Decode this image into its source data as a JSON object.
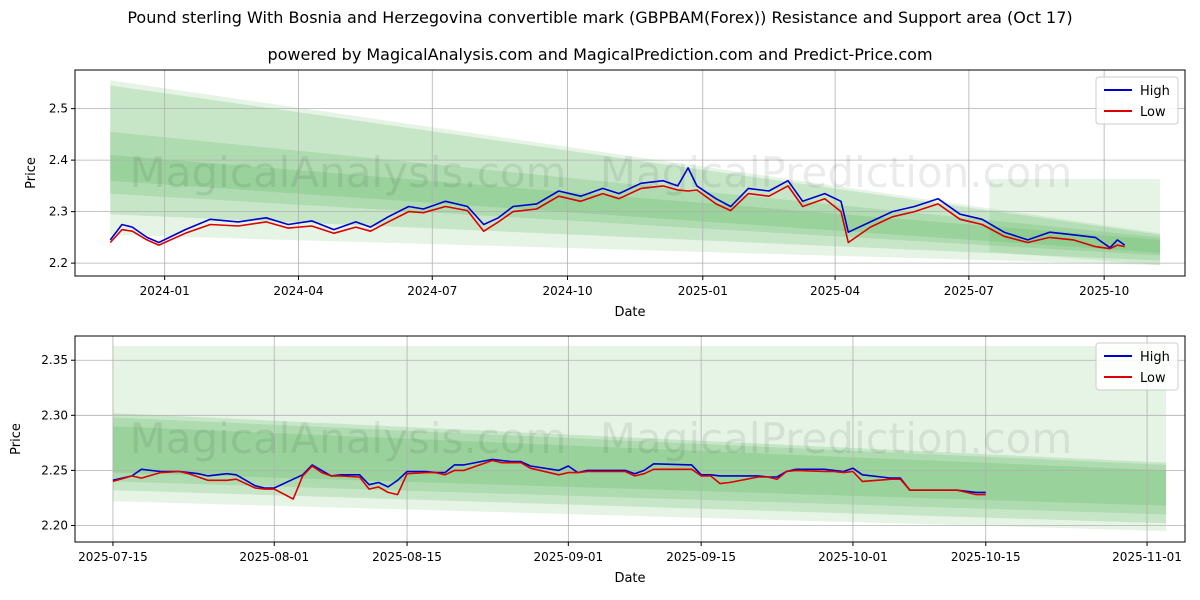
{
  "title": "Pound sterling With Bosnia and Herzegovina convertible mark (GBPBAM(Forex)) Resistance and Support area (Oct 17)",
  "subtitle": "powered by MagicalAnalysis.com and MagicalPrediction.com and Predict-Price.com",
  "watermarks": [
    "MagicalAnalysis.com",
    "MagicalPrediction.com"
  ],
  "colors": {
    "high": "#0000cc",
    "low": "#dd0000",
    "band": "#4caf50",
    "grid": "#b0b0b0"
  },
  "chart_data": [
    {
      "type": "line",
      "xlabel": "Date",
      "ylabel": "Price",
      "grid": true,
      "legend": "top-right",
      "xlim": [
        "2023-11-01",
        "2025-11-25"
      ],
      "ylim": [
        2.175,
        2.575
      ],
      "xticks": [
        {
          "date": "2024-01-01",
          "label": "2024-01"
        },
        {
          "date": "2024-04-01",
          "label": "2024-04"
        },
        {
          "date": "2024-07-01",
          "label": "2024-07"
        },
        {
          "date": "2024-10-01",
          "label": "2024-10"
        },
        {
          "date": "2025-01-01",
          "label": "2025-01"
        },
        {
          "date": "2025-04-01",
          "label": "2025-04"
        },
        {
          "date": "2025-07-01",
          "label": "2025-07"
        },
        {
          "date": "2025-10-01",
          "label": "2025-10"
        }
      ],
      "yticks": [
        {
          "v": 2.2,
          "label": "2.2"
        },
        {
          "v": 2.3,
          "label": "2.3"
        },
        {
          "v": 2.4,
          "label": "2.4"
        },
        {
          "v": 2.5,
          "label": "2.5"
        }
      ],
      "bands": [
        {
          "x": [
            "2023-11-25",
            "2025-11-08"
          ],
          "upper": [
            2.555,
            2.258
          ],
          "lower": [
            2.255,
            2.196
          ],
          "opacity": 0.14
        },
        {
          "x": [
            "2023-11-25",
            "2025-11-08"
          ],
          "upper": [
            2.545,
            2.255
          ],
          "lower": [
            2.295,
            2.205
          ],
          "opacity": 0.2
        },
        {
          "x": [
            "2023-11-25",
            "2025-11-08"
          ],
          "upper": [
            2.455,
            2.25
          ],
          "lower": [
            2.335,
            2.215
          ],
          "opacity": 0.2
        },
        {
          "x": [
            "2023-11-25",
            "2025-11-08"
          ],
          "upper": [
            2.41,
            2.245
          ],
          "lower": [
            2.36,
            2.22
          ],
          "opacity": 0.2
        },
        {
          "x": [
            "2025-07-15",
            "2025-11-08"
          ],
          "upper": [
            2.363,
            2.363
          ],
          "lower": [
            2.222,
            2.196
          ],
          "opacity": 0.14
        }
      ],
      "series": [
        {
          "name": "High",
          "x": [
            "2023-11-25",
            "2023-12-03",
            "2023-12-10",
            "2023-12-20",
            "2023-12-28",
            "2024-01-15",
            "2024-02-01",
            "2024-02-20",
            "2024-03-10",
            "2024-03-25",
            "2024-04-10",
            "2024-04-25",
            "2024-05-10",
            "2024-05-20",
            "2024-06-01",
            "2024-06-15",
            "2024-06-25",
            "2024-07-10",
            "2024-07-25",
            "2024-08-05",
            "2024-08-15",
            "2024-08-25",
            "2024-09-10",
            "2024-09-25",
            "2024-10-10",
            "2024-10-25",
            "2024-11-05",
            "2024-11-20",
            "2024-12-05",
            "2024-12-15",
            "2024-12-22",
            "2024-12-28",
            "2025-01-10",
            "2025-01-20",
            "2025-02-01",
            "2025-02-15",
            "2025-02-28",
            "2025-03-10",
            "2025-03-25",
            "2025-04-05",
            "2025-04-10",
            "2025-04-25",
            "2025-05-10",
            "2025-05-25",
            "2025-06-10",
            "2025-06-25",
            "2025-07-10",
            "2025-07-25",
            "2025-08-10",
            "2025-08-25",
            "2025-09-10",
            "2025-09-25",
            "2025-10-05",
            "2025-10-10",
            "2025-10-15"
          ],
          "y": [
            2.245,
            2.275,
            2.27,
            2.25,
            2.24,
            2.265,
            2.285,
            2.28,
            2.288,
            2.275,
            2.282,
            2.265,
            2.28,
            2.27,
            2.29,
            2.31,
            2.305,
            2.32,
            2.31,
            2.275,
            2.288,
            2.31,
            2.315,
            2.34,
            2.33,
            2.345,
            2.335,
            2.355,
            2.36,
            2.35,
            2.385,
            2.35,
            2.325,
            2.31,
            2.345,
            2.34,
            2.36,
            2.32,
            2.335,
            2.32,
            2.26,
            2.28,
            2.3,
            2.31,
            2.325,
            2.295,
            2.285,
            2.26,
            2.245,
            2.26,
            2.255,
            2.25,
            2.23,
            2.245,
            2.235
          ]
        },
        {
          "name": "Low",
          "x": [
            "2023-11-25",
            "2023-12-03",
            "2023-12-10",
            "2023-12-20",
            "2023-12-28",
            "2024-01-15",
            "2024-02-01",
            "2024-02-20",
            "2024-03-10",
            "2024-03-25",
            "2024-04-10",
            "2024-04-25",
            "2024-05-10",
            "2024-05-20",
            "2024-06-01",
            "2024-06-15",
            "2024-06-25",
            "2024-07-10",
            "2024-07-25",
            "2024-08-05",
            "2024-08-15",
            "2024-08-25",
            "2024-09-10",
            "2024-09-25",
            "2024-10-10",
            "2024-10-25",
            "2024-11-05",
            "2024-11-20",
            "2024-12-05",
            "2024-12-15",
            "2024-12-22",
            "2024-12-28",
            "2025-01-10",
            "2025-01-20",
            "2025-02-01",
            "2025-02-15",
            "2025-02-28",
            "2025-03-10",
            "2025-03-25",
            "2025-04-05",
            "2025-04-10",
            "2025-04-25",
            "2025-05-10",
            "2025-05-25",
            "2025-06-10",
            "2025-06-25",
            "2025-07-10",
            "2025-07-25",
            "2025-08-10",
            "2025-08-25",
            "2025-09-10",
            "2025-09-25",
            "2025-10-05",
            "2025-10-10",
            "2025-10-15"
          ],
          "y": [
            2.24,
            2.265,
            2.262,
            2.245,
            2.235,
            2.258,
            2.275,
            2.272,
            2.28,
            2.268,
            2.272,
            2.258,
            2.27,
            2.262,
            2.28,
            2.3,
            2.298,
            2.31,
            2.302,
            2.262,
            2.28,
            2.3,
            2.305,
            2.33,
            2.32,
            2.335,
            2.325,
            2.345,
            2.35,
            2.342,
            2.34,
            2.342,
            2.315,
            2.302,
            2.335,
            2.33,
            2.35,
            2.31,
            2.325,
            2.3,
            2.24,
            2.27,
            2.29,
            2.3,
            2.315,
            2.285,
            2.275,
            2.252,
            2.24,
            2.25,
            2.245,
            2.232,
            2.228,
            2.235,
            2.232
          ]
        }
      ]
    },
    {
      "type": "line",
      "xlabel": "Date",
      "ylabel": "Price",
      "grid": true,
      "legend": "top-right",
      "xlim": [
        "2025-07-11",
        "2025-11-05"
      ],
      "ylim": [
        2.185,
        2.372
      ],
      "xticks": [
        {
          "date": "2025-07-15",
          "label": "2025-07-15"
        },
        {
          "date": "2025-08-01",
          "label": "2025-08-01"
        },
        {
          "date": "2025-08-15",
          "label": "2025-08-15"
        },
        {
          "date": "2025-09-01",
          "label": "2025-09-01"
        },
        {
          "date": "2025-09-15",
          "label": "2025-09-15"
        },
        {
          "date": "2025-10-01",
          "label": "2025-10-01"
        },
        {
          "date": "2025-10-15",
          "label": "2025-10-15"
        },
        {
          "date": "2025-11-01",
          "label": "2025-11-01"
        }
      ],
      "yticks": [
        {
          "v": 2.2,
          "label": "2.20"
        },
        {
          "v": 2.25,
          "label": "2.25"
        },
        {
          "v": 2.3,
          "label": "2.30"
        },
        {
          "v": 2.35,
          "label": "2.35"
        }
      ],
      "bands": [
        {
          "x": [
            "2025-07-15",
            "2025-11-03"
          ],
          "upper": [
            2.363,
            2.363
          ],
          "lower": [
            2.222,
            2.195
          ],
          "opacity": 0.14
        },
        {
          "x": [
            "2025-07-15",
            "2025-11-03"
          ],
          "upper": [
            2.302,
            2.257
          ],
          "lower": [
            2.232,
            2.202
          ],
          "opacity": 0.2
        },
        {
          "x": [
            "2025-07-15",
            "2025-11-03"
          ],
          "upper": [
            2.298,
            2.255
          ],
          "lower": [
            2.24,
            2.21
          ],
          "opacity": 0.2
        },
        {
          "x": [
            "2025-07-15",
            "2025-11-03"
          ],
          "upper": [
            2.29,
            2.25
          ],
          "lower": [
            2.248,
            2.218
          ],
          "opacity": 0.2
        }
      ],
      "series": [
        {
          "name": "High",
          "x": [
            "2025-07-15",
            "2025-07-17",
            "2025-07-18",
            "2025-07-20",
            "2025-07-22",
            "2025-07-23",
            "2025-07-24",
            "2025-07-25",
            "2025-07-27",
            "2025-07-28",
            "2025-07-30",
            "2025-07-31",
            "2025-08-01",
            "2025-08-03",
            "2025-08-04",
            "2025-08-05",
            "2025-08-06",
            "2025-08-07",
            "2025-08-08",
            "2025-08-10",
            "2025-08-11",
            "2025-08-12",
            "2025-08-13",
            "2025-08-14",
            "2025-08-15",
            "2025-08-17",
            "2025-08-18",
            "2025-08-19",
            "2025-08-20",
            "2025-08-21",
            "2025-08-24",
            "2025-08-25",
            "2025-08-26",
            "2025-08-27",
            "2025-08-28",
            "2025-08-31",
            "2025-09-01",
            "2025-09-02",
            "2025-09-03",
            "2025-09-04",
            "2025-09-07",
            "2025-09-08",
            "2025-09-09",
            "2025-09-10",
            "2025-09-14",
            "2025-09-15",
            "2025-09-16",
            "2025-09-17",
            "2025-09-18",
            "2025-09-21",
            "2025-09-22",
            "2025-09-23",
            "2025-09-24",
            "2025-09-25",
            "2025-09-28",
            "2025-09-29",
            "2025-09-30",
            "2025-10-01",
            "2025-10-02",
            "2025-10-05",
            "2025-10-06",
            "2025-10-07",
            "2025-10-08",
            "2025-10-09",
            "2025-10-12",
            "2025-10-13",
            "2025-10-14",
            "2025-10-15"
          ],
          "y": [
            2.241,
            2.245,
            2.251,
            2.249,
            2.249,
            2.248,
            2.247,
            2.245,
            2.247,
            2.246,
            2.236,
            2.234,
            2.234,
            2.242,
            2.246,
            2.255,
            2.25,
            2.245,
            2.246,
            2.246,
            2.237,
            2.239,
            2.235,
            2.241,
            2.249,
            2.249,
            2.248,
            2.248,
            2.255,
            2.255,
            2.26,
            2.259,
            2.258,
            2.258,
            2.254,
            2.25,
            2.254,
            2.248,
            2.25,
            2.25,
            2.25,
            2.247,
            2.25,
            2.256,
            2.255,
            2.246,
            2.246,
            2.245,
            2.245,
            2.245,
            2.244,
            2.244,
            2.249,
            2.251,
            2.251,
            2.25,
            2.249,
            2.252,
            2.246,
            2.243,
            2.243,
            2.232,
            2.232,
            2.232,
            2.232,
            2.231,
            2.23,
            2.23
          ]
        },
        {
          "name": "Low",
          "x": [
            "2025-07-15",
            "2025-07-17",
            "2025-07-18",
            "2025-07-20",
            "2025-07-22",
            "2025-07-23",
            "2025-07-24",
            "2025-07-25",
            "2025-07-27",
            "2025-07-28",
            "2025-07-30",
            "2025-07-31",
            "2025-08-01",
            "2025-08-03",
            "2025-08-04",
            "2025-08-05",
            "2025-08-06",
            "2025-08-07",
            "2025-08-08",
            "2025-08-10",
            "2025-08-11",
            "2025-08-12",
            "2025-08-13",
            "2025-08-14",
            "2025-08-15",
            "2025-08-17",
            "2025-08-18",
            "2025-08-19",
            "2025-08-20",
            "2025-08-21",
            "2025-08-24",
            "2025-08-25",
            "2025-08-26",
            "2025-08-27",
            "2025-08-28",
            "2025-08-31",
            "2025-09-01",
            "2025-09-02",
            "2025-09-03",
            "2025-09-04",
            "2025-09-07",
            "2025-09-08",
            "2025-09-09",
            "2025-09-10",
            "2025-09-14",
            "2025-09-15",
            "2025-09-16",
            "2025-09-17",
            "2025-09-18",
            "2025-09-21",
            "2025-09-22",
            "2025-09-23",
            "2025-09-24",
            "2025-09-25",
            "2025-09-28",
            "2025-09-29",
            "2025-09-30",
            "2025-10-01",
            "2025-10-02",
            "2025-10-05",
            "2025-10-06",
            "2025-10-07",
            "2025-10-08",
            "2025-10-09",
            "2025-10-12",
            "2025-10-13",
            "2025-10-14",
            "2025-10-15"
          ],
          "y": [
            2.24,
            2.245,
            2.243,
            2.248,
            2.249,
            2.247,
            2.244,
            2.241,
            2.241,
            2.242,
            2.234,
            2.233,
            2.233,
            2.224,
            2.245,
            2.254,
            2.248,
            2.245,
            2.245,
            2.244,
            2.233,
            2.235,
            2.23,
            2.228,
            2.247,
            2.248,
            2.248,
            2.246,
            2.25,
            2.25,
            2.259,
            2.257,
            2.257,
            2.257,
            2.252,
            2.246,
            2.248,
            2.248,
            2.249,
            2.249,
            2.249,
            2.245,
            2.247,
            2.251,
            2.251,
            2.245,
            2.245,
            2.238,
            2.239,
            2.244,
            2.244,
            2.242,
            2.249,
            2.25,
            2.249,
            2.249,
            2.248,
            2.249,
            2.24,
            2.242,
            2.242,
            2.232,
            2.232,
            2.232,
            2.232,
            2.23,
            2.228,
            2.228
          ]
        }
      ]
    }
  ]
}
